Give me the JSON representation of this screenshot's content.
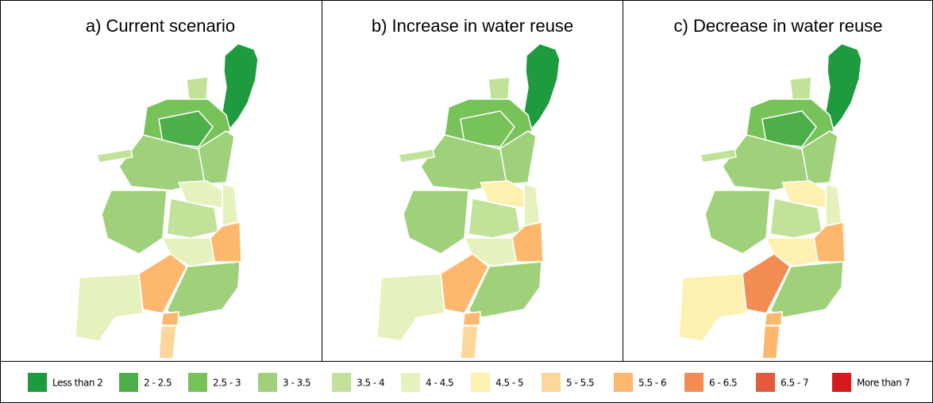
{
  "panels": [
    {
      "title": "a) Current scenario"
    },
    {
      "title": "b) Increase in water reuse"
    },
    {
      "title": "c) Decrease in water reuse"
    }
  ],
  "legend": [
    {
      "label": "Less than 2",
      "color": "#1e9a3f"
    },
    {
      "label": "2 - 2.5",
      "color": "#4daf4a"
    },
    {
      "label": "2.5 - 3",
      "color": "#78c25a"
    },
    {
      "label": "3 - 3.5",
      "color": "#9fd17a"
    },
    {
      "label": "3.5 - 4",
      "color": "#c2e29a"
    },
    {
      "label": "4 - 4.5",
      "color": "#e6f2bd"
    },
    {
      "label": "4.5 - 5",
      "color": "#fdf1b0"
    },
    {
      "label": "5 - 5.5",
      "color": "#fdd79a"
    },
    {
      "label": "5.5 - 6",
      "color": "#fdb86e"
    },
    {
      "label": "6 - 6.5",
      "color": "#f28c53"
    },
    {
      "label": "6.5 - 7",
      "color": "#e55a3c"
    },
    {
      "label": "More than 7",
      "color": "#d7191c"
    }
  ]
}
